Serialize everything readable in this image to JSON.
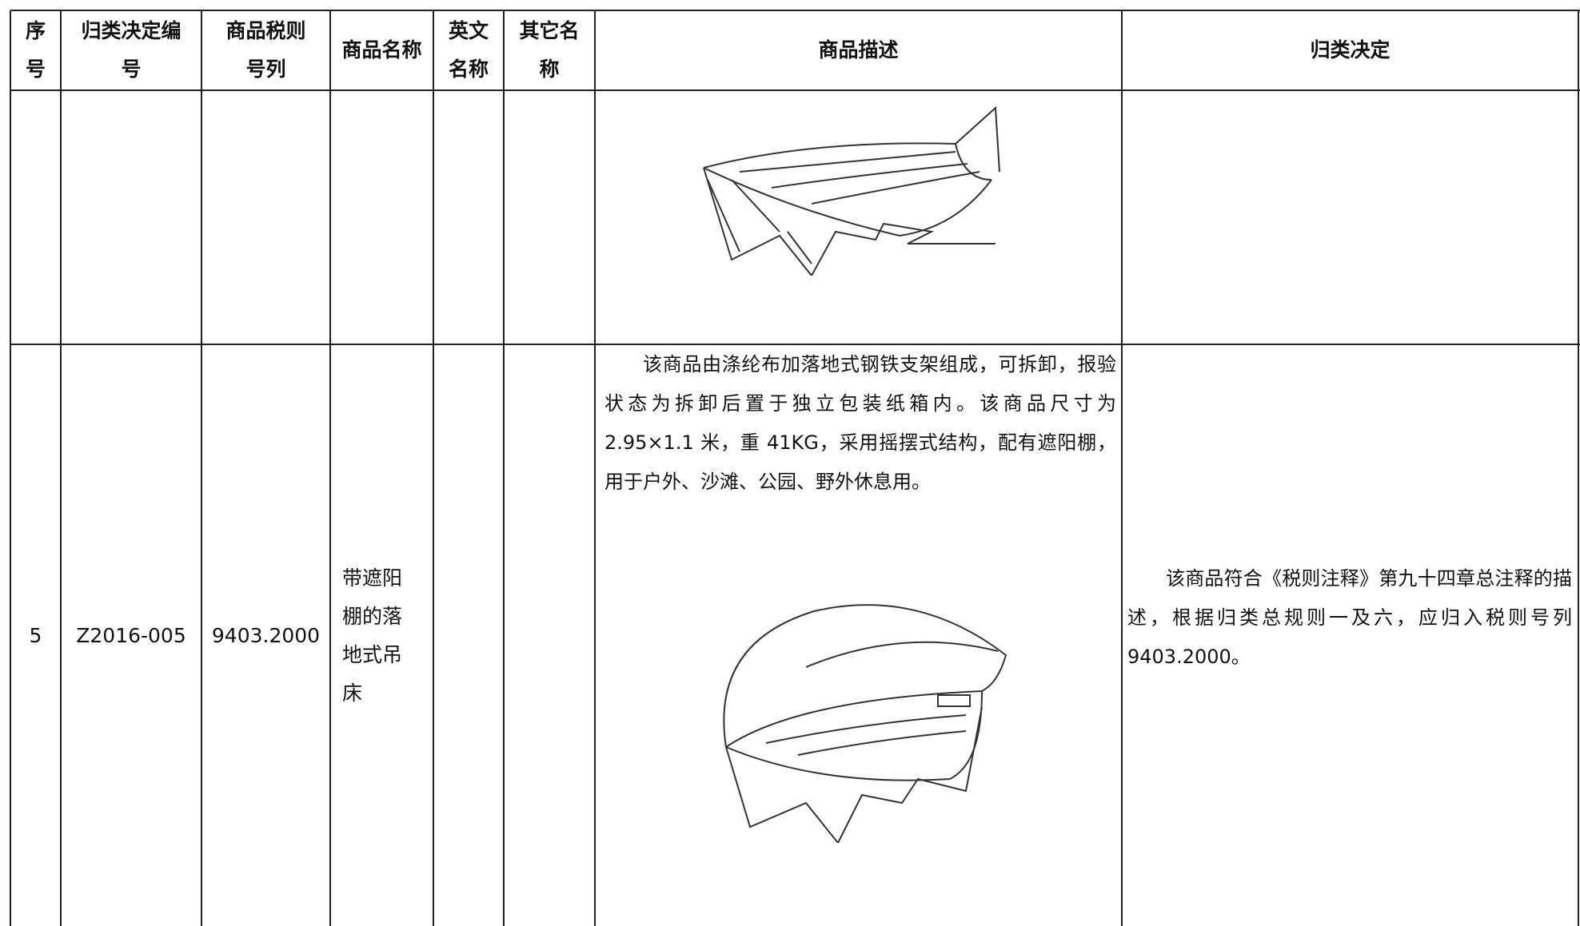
{
  "table": {
    "header": [
      "序号",
      "归类决定编号",
      "商品税则号列",
      "商品名称",
      "英文名称",
      "其它名称",
      "商品描述",
      "归类决定"
    ],
    "rows": [
      {
        "index": "5",
        "decision_no": "Z2016-005",
        "tariff_no": "9403.2000",
        "name": "带遮阳棚的落地式吊床",
        "description": "该商品由涤纶布加落地式钢铁支架组成，可拆卸，报验状态为拆卸后置于独立包装纸箱内。该商品尺寸为 2.95×1.1 米，重 41KG，采用摇摆式结构，配有遮阳棚，用于户外、沙滩、公园、野外休息用。",
        "decision": "该商品符合《税则注释》第九十四章总注释的描述，根据归类总规则一及六，应归入税则号列 9403.2000。"
      }
    ]
  }
}
